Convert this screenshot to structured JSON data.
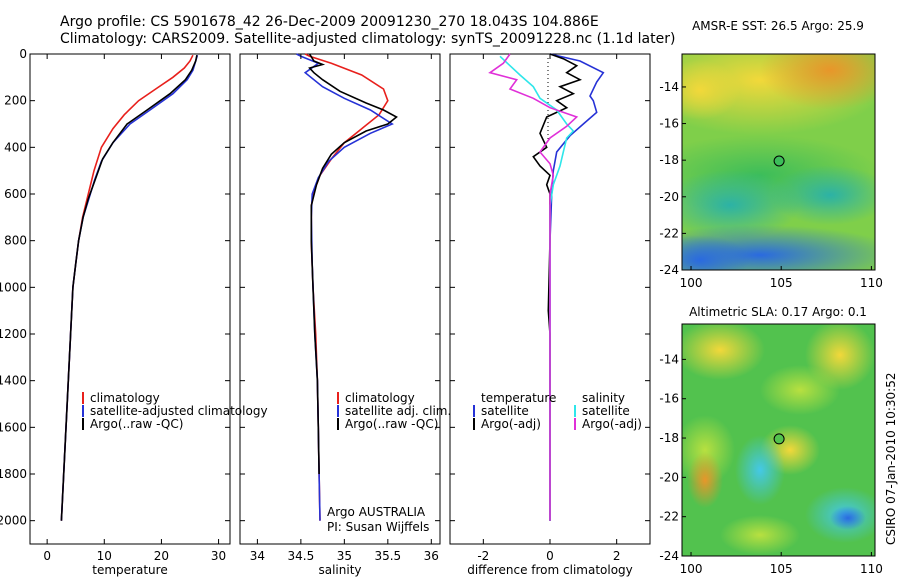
{
  "header": {
    "line1": "Argo profile: CS 5901678_42 26-Dec-2009 20091230_270 18.043S 104.886E",
    "line2": "Climatology: CARS2009. Satellite-adjusted climatology: synTS_20091228.nc (1.1d later)"
  },
  "footer": {
    "stamp": "CSIRO 07-Jan-2010 10:30:52"
  },
  "colors": {
    "red": "#e8201c",
    "blue": "#2632d6",
    "black": "#000000",
    "cyan": "#2ee6ea",
    "magenta": "#e030d8"
  },
  "chart_data": [
    {
      "type": "line",
      "id": "temperature",
      "xlabel": "temperature",
      "xlim": [
        -3,
        32
      ],
      "ylim": [
        2100,
        0
      ],
      "xticks": [
        "0",
        "10",
        "20",
        "30"
      ],
      "yticks": [
        "0",
        "200",
        "400",
        "600",
        "800",
        "1000",
        "1200",
        "1400",
        "1600",
        "1800",
        "2000"
      ],
      "legend": {
        "position": "lower-center",
        "entries": [
          "climatology",
          "satellite-adjusted climatology",
          "Argo(..raw -QC)"
        ]
      },
      "series": [
        {
          "name": "climatology",
          "color": "red",
          "points": [
            [
              25.5,
              5
            ],
            [
              25,
              30
            ],
            [
              24,
              60
            ],
            [
              22,
              100
            ],
            [
              19,
              150
            ],
            [
              16,
              200
            ],
            [
              13.5,
              260
            ],
            [
              11.5,
              320
            ],
            [
              9.5,
              400
            ],
            [
              8.2,
              500
            ],
            [
              7.2,
              600
            ],
            [
              6.2,
              700
            ],
            [
              5.5,
              800
            ],
            [
              5,
              900
            ],
            [
              4.5,
              1000
            ],
            [
              4.1,
              1200
            ],
            [
              3.7,
              1400
            ],
            [
              3.3,
              1600
            ],
            [
              2.9,
              1800
            ],
            [
              2.5,
              2000
            ]
          ]
        },
        {
          "name": "satellite-adjusted climatology",
          "color": "blue",
          "points": [
            [
              26.3,
              5
            ],
            [
              26,
              30
            ],
            [
              25.5,
              70
            ],
            [
              24.5,
              110
            ],
            [
              22,
              170
            ],
            [
              18,
              240
            ],
            [
              14.5,
              300
            ],
            [
              11.5,
              380
            ],
            [
              9.5,
              460
            ],
            [
              8.3,
              540
            ],
            [
              7.3,
              620
            ],
            [
              6.3,
              700
            ],
            [
              5.5,
              800
            ],
            [
              5,
              900
            ],
            [
              4.5,
              1000
            ],
            [
              4.1,
              1200
            ],
            [
              3.7,
              1400
            ],
            [
              3.3,
              1600
            ],
            [
              2.9,
              1800
            ],
            [
              2.5,
              2000
            ]
          ]
        },
        {
          "name": "Argo(..raw -QC)",
          "color": "black",
          "points": [
            [
              26.2,
              5
            ],
            [
              26,
              30
            ],
            [
              25.3,
              70
            ],
            [
              24.2,
              110
            ],
            [
              21.5,
              170
            ],
            [
              17.5,
              240
            ],
            [
              14,
              300
            ],
            [
              11.5,
              380
            ],
            [
              9.7,
              450
            ],
            [
              8.4,
              540
            ],
            [
              7.2,
              620
            ],
            [
              6.3,
              700
            ],
            [
              5.5,
              800
            ],
            [
              5,
              900
            ],
            [
              4.5,
              1000
            ],
            [
              4.1,
              1200
            ],
            [
              3.7,
              1400
            ],
            [
              3.3,
              1600
            ],
            [
              2.9,
              1800
            ],
            [
              2.5,
              2000
            ]
          ]
        }
      ]
    },
    {
      "type": "line",
      "id": "salinity",
      "xlabel": "salinity",
      "xlim": [
        33.8,
        36.1
      ],
      "ylim": [
        2100,
        0
      ],
      "xticks": [
        "34",
        "34.5",
        "35",
        "35.5",
        "36"
      ],
      "legend": {
        "position": "lower-center",
        "entries": [
          "climatology",
          "satellite adj. clim.",
          "Argo(..raw -QC)"
        ]
      },
      "annotation": [
        "Argo AUSTRALIA",
        "PI: Susan Wijffels"
      ],
      "series": [
        {
          "name": "climatology",
          "color": "red",
          "points": [
            [
              34.55,
              0
            ],
            [
              34.6,
              10
            ],
            [
              34.85,
              40
            ],
            [
              35.2,
              90
            ],
            [
              35.45,
              150
            ],
            [
              35.5,
              200
            ],
            [
              35.4,
              260
            ],
            [
              35.2,
              320
            ],
            [
              35,
              380
            ],
            [
              34.85,
              450
            ],
            [
              34.72,
              520
            ],
            [
              34.66,
              580
            ],
            [
              34.62,
              650
            ],
            [
              34.62,
              800
            ],
            [
              34.64,
              1000
            ],
            [
              34.67,
              1200
            ],
            [
              34.69,
              1400
            ],
            [
              34.7,
              1600
            ],
            [
              34.71,
              1800
            ],
            [
              34.72,
              2000
            ]
          ]
        },
        {
          "name": "satellite adj. clim.",
          "color": "blue",
          "points": [
            [
              34.45,
              0
            ],
            [
              34.5,
              10
            ],
            [
              34.7,
              40
            ],
            [
              34.55,
              80
            ],
            [
              34.75,
              140
            ],
            [
              35,
              190
            ],
            [
              35.3,
              240
            ],
            [
              35.55,
              300
            ],
            [
              35.3,
              340
            ],
            [
              35,
              400
            ],
            [
              34.82,
              460
            ],
            [
              34.7,
              530
            ],
            [
              34.63,
              600
            ],
            [
              34.62,
              700
            ],
            [
              34.63,
              900
            ],
            [
              34.66,
              1200
            ],
            [
              34.69,
              1400
            ],
            [
              34.7,
              1600
            ],
            [
              34.71,
              1800
            ],
            [
              34.72,
              2000
            ]
          ]
        },
        {
          "name": "Argo(..raw -QC)",
          "color": "black",
          "points": [
            [
              34.6,
              0
            ],
            [
              34.65,
              30
            ],
            [
              34.75,
              45
            ],
            [
              34.6,
              60
            ],
            [
              34.65,
              80
            ],
            [
              34.75,
              110
            ],
            [
              34.95,
              160
            ],
            [
              35.25,
              210
            ],
            [
              35.45,
              240
            ],
            [
              35.6,
              270
            ],
            [
              35.5,
              300
            ],
            [
              35.25,
              330
            ],
            [
              35,
              380
            ],
            [
              34.85,
              430
            ],
            [
              34.75,
              490
            ],
            [
              34.68,
              560
            ],
            [
              34.62,
              650
            ],
            [
              34.62,
              800
            ],
            [
              34.64,
              1000
            ],
            [
              34.66,
              1200
            ],
            [
              34.69,
              1400
            ],
            [
              34.7,
              1600
            ],
            [
              34.71,
              1800
            ]
          ]
        }
      ]
    },
    {
      "type": "line",
      "id": "difference",
      "xlabel": "difference from climatology",
      "xlim": [
        -3,
        3
      ],
      "ylim": [
        2100,
        0
      ],
      "xticks": [
        "-2",
        "0",
        "2"
      ],
      "legend": {
        "position": "lower-center",
        "entries": [
          "temperature",
          "satellite",
          "Argo(-adj)",
          "salinity",
          "satellite",
          "Argo(-adj)"
        ]
      },
      "series": [
        {
          "name": "temperature satellite",
          "color": "blue",
          "points": [
            [
              0,
              0
            ],
            [
              0.9,
              30
            ],
            [
              1.6,
              80
            ],
            [
              1.4,
              120
            ],
            [
              1.2,
              180
            ],
            [
              1.3,
              200
            ],
            [
              1.4,
              250
            ],
            [
              1,
              300
            ],
            [
              0.6,
              350
            ],
            [
              0.2,
              420
            ],
            [
              0.1,
              500
            ],
            [
              0.05,
              600
            ],
            [
              0,
              800
            ],
            [
              0,
              2000
            ]
          ]
        },
        {
          "name": "temperature Argo(-adj)",
          "color": "black",
          "points": [
            [
              0,
              0
            ],
            [
              0.4,
              20
            ],
            [
              0.8,
              50
            ],
            [
              0.5,
              80
            ],
            [
              0.9,
              110
            ],
            [
              0.3,
              140
            ],
            [
              0.7,
              170
            ],
            [
              0.2,
              200
            ],
            [
              0.5,
              230
            ],
            [
              -0.1,
              270
            ],
            [
              -0.3,
              340
            ],
            [
              -0.1,
              400
            ],
            [
              -0.5,
              440
            ],
            [
              -0.3,
              480
            ],
            [
              0,
              520
            ],
            [
              -0.1,
              560
            ],
            [
              0,
              600
            ],
            [
              0,
              800
            ],
            [
              -0.05,
              1100
            ],
            [
              0,
              1200
            ],
            [
              0,
              2000
            ]
          ]
        },
        {
          "name": "salinity satellite",
          "color": "cyan",
          "points": [
            [
              -1.5,
              10
            ],
            [
              -1.2,
              50
            ],
            [
              -0.9,
              90
            ],
            [
              -0.5,
              140
            ],
            [
              -0.3,
              190
            ],
            [
              0.2,
              240
            ],
            [
              0.5,
              300
            ],
            [
              0.7,
              330
            ],
            [
              0.5,
              360
            ],
            [
              0.4,
              420
            ],
            [
              0.3,
              480
            ],
            [
              0.1,
              560
            ],
            [
              0,
              650
            ],
            [
              0,
              800
            ],
            [
              0,
              2000
            ]
          ]
        },
        {
          "name": "salinity Argo(-adj)",
          "color": "magenta",
          "points": [
            [
              -1.2,
              0
            ],
            [
              -1.4,
              40
            ],
            [
              -1.8,
              80
            ],
            [
              -1,
              110
            ],
            [
              -1.2,
              150
            ],
            [
              -0.5,
              190
            ],
            [
              0,
              230
            ],
            [
              0.8,
              270
            ],
            [
              0.5,
              310
            ],
            [
              0,
              360
            ],
            [
              -0.3,
              420
            ],
            [
              0,
              470
            ],
            [
              0.1,
              520
            ],
            [
              0,
              600
            ],
            [
              0,
              800
            ],
            [
              0,
              2000
            ]
          ]
        }
      ]
    },
    {
      "type": "heatmap",
      "id": "sst-map",
      "title": "AMSR-E SST: 26.5 Argo: 25.9",
      "xlim": [
        99.5,
        110.2
      ],
      "ylim": [
        -24,
        -12.2
      ],
      "xticks": [
        "100",
        "105",
        "110"
      ],
      "yticks": [
        "-14",
        "-16",
        "-18",
        "-20",
        "-22",
        "-24"
      ],
      "marker": {
        "lon": 104.886,
        "lat": -18.043
      }
    },
    {
      "type": "heatmap",
      "id": "sla-map",
      "title": "Altimetric SLA: 0.17 Argo: 0.1",
      "xlim": [
        99.5,
        110.2
      ],
      "ylim": [
        -24,
        -12.2
      ],
      "xticks": [
        "100",
        "105",
        "110"
      ],
      "yticks": [
        "-14",
        "-16",
        "-18",
        "-20",
        "-22",
        "-24"
      ],
      "marker": {
        "lon": 104.886,
        "lat": -18.043
      }
    }
  ]
}
